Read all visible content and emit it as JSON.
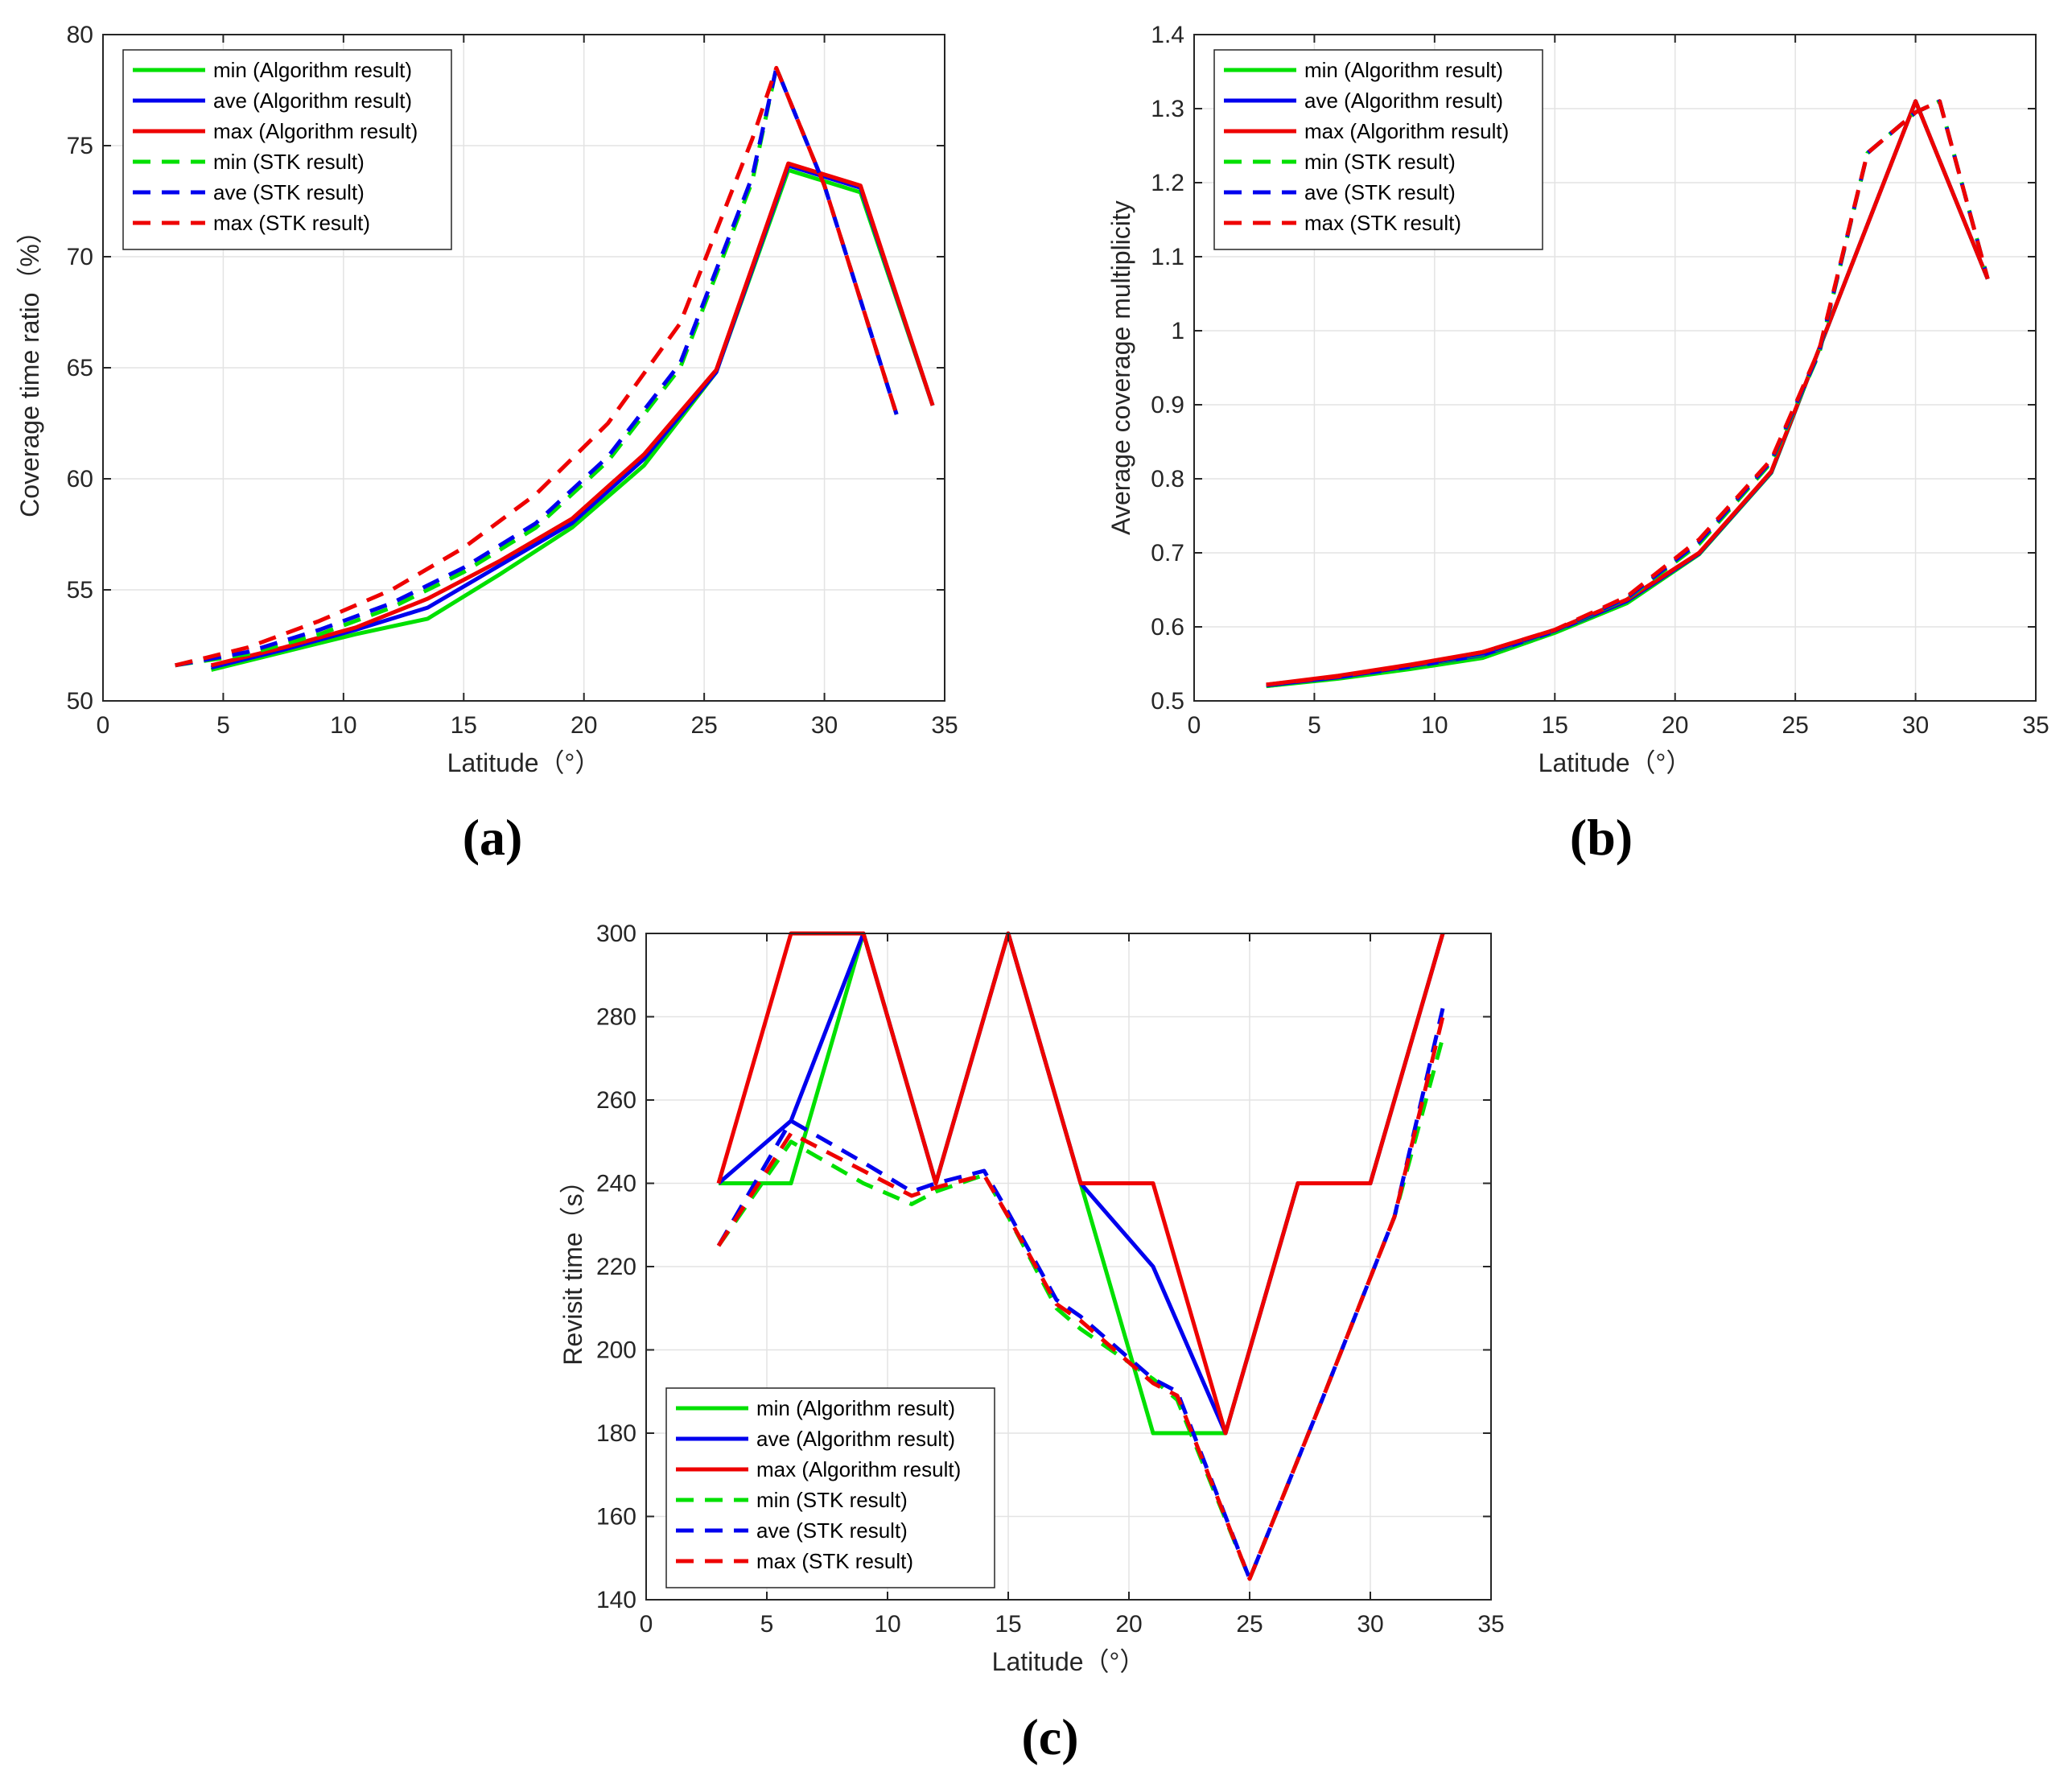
{
  "figure": {
    "panel_labels": [
      "(a)",
      "(b)",
      "(c)"
    ]
  },
  "legend_entries": [
    {
      "label": "min (Algorithm result)",
      "color": "#00e000",
      "style": "solid"
    },
    {
      "label": "ave (Algorithm result)",
      "color": "#0000ee",
      "style": "solid"
    },
    {
      "label": "max (Algorithm result)",
      "color": "#ee0000",
      "style": "solid"
    },
    {
      "label": "min (STK result)",
      "color": "#00e000",
      "style": "dashed"
    },
    {
      "label": "ave (STK result)",
      "color": "#0000ee",
      "style": "dashed"
    },
    {
      "label": "max (STK result)",
      "color": "#ee0000",
      "style": "dashed"
    }
  ],
  "chart_data": [
    {
      "id": "a",
      "type": "line",
      "panel_label": "(a)",
      "title": "",
      "xlabel": "Latitude（°）",
      "ylabel": "Coverage time ratio（%）",
      "xlim": [
        0,
        35
      ],
      "ylim": [
        50,
        80
      ],
      "xticks": [
        0,
        5,
        10,
        15,
        20,
        25,
        30,
        35
      ],
      "yticks": [
        50,
        55,
        60,
        65,
        70,
        75,
        80
      ],
      "grid": true,
      "legend_position": "top-left",
      "series": [
        {
          "name": "min (Algorithm result)",
          "color": "#00e000",
          "dashed": false,
          "x": [
            4.5,
            7.5,
            10.5,
            13.5,
            16.5,
            19.5,
            22.5,
            25.5,
            28.5,
            31.5,
            34.5
          ],
          "y": [
            51.4,
            52.2,
            53.0,
            53.7,
            55.7,
            57.8,
            60.6,
            64.8,
            73.9,
            72.9,
            63.3
          ]
        },
        {
          "name": "ave (Algorithm result)",
          "color": "#0000ee",
          "dashed": false,
          "x": [
            4.5,
            7.5,
            10.5,
            13.5,
            16.5,
            19.5,
            22.5,
            25.5,
            28.5,
            31.5,
            34.5
          ],
          "y": [
            51.5,
            52.3,
            53.2,
            54.2,
            56.1,
            58.0,
            60.9,
            64.8,
            74.1,
            73.1,
            63.3
          ]
        },
        {
          "name": "max (Algorithm result)",
          "color": "#ee0000",
          "dashed": false,
          "x": [
            4.5,
            7.5,
            10.5,
            13.5,
            16.5,
            19.5,
            22.5,
            25.5,
            28.5,
            31.5,
            34.5
          ],
          "y": [
            51.6,
            52.4,
            53.3,
            54.6,
            56.3,
            58.2,
            61.1,
            64.9,
            74.2,
            73.2,
            63.3
          ]
        },
        {
          "name": "min (STK result)",
          "color": "#00e000",
          "dashed": true,
          "x": [
            3,
            6,
            9,
            12,
            15,
            18,
            21,
            24,
            27,
            28,
            30,
            33
          ],
          "y": [
            51.6,
            52.1,
            53.0,
            54.2,
            55.8,
            57.8,
            60.8,
            65.0,
            73.4,
            78.5,
            73.2,
            62.9
          ]
        },
        {
          "name": "ave (STK result)",
          "color": "#0000ee",
          "dashed": true,
          "x": [
            3,
            6,
            9,
            12,
            15,
            18,
            21,
            24,
            27,
            28,
            30,
            33
          ],
          "y": [
            51.6,
            52.2,
            53.2,
            54.4,
            56.0,
            58.0,
            61.0,
            65.2,
            73.6,
            78.5,
            73.2,
            62.9
          ]
        },
        {
          "name": "max (STK result)",
          "color": "#ee0000",
          "dashed": true,
          "x": [
            3,
            6,
            9,
            12,
            15,
            18,
            21,
            24,
            27,
            28,
            30,
            33
          ],
          "y": [
            51.6,
            52.4,
            53.6,
            55.0,
            56.9,
            59.3,
            62.5,
            67.0,
            75.3,
            78.5,
            73.2,
            62.9
          ]
        }
      ]
    },
    {
      "id": "b",
      "type": "line",
      "panel_label": "(b)",
      "title": "",
      "xlabel": "Latitude（°）",
      "ylabel": "Average coverage multiplicity",
      "xlim": [
        0,
        35
      ],
      "ylim": [
        0.5,
        1.4
      ],
      "xticks": [
        0,
        5,
        10,
        15,
        20,
        25,
        30,
        35
      ],
      "yticks": [
        0.5,
        0.6,
        0.7,
        0.8,
        0.9,
        1,
        1.1,
        1.2,
        1.3,
        1.4
      ],
      "grid": true,
      "legend_position": "top-left",
      "series": [
        {
          "name": "min (Algorithm result)",
          "color": "#00e000",
          "dashed": false,
          "x": [
            3,
            6,
            9,
            12,
            15,
            18,
            21,
            24,
            27,
            30,
            33
          ],
          "y": [
            0.52,
            0.53,
            0.543,
            0.558,
            0.592,
            0.632,
            0.698,
            0.808,
            1.06,
            1.31,
            1.07
          ]
        },
        {
          "name": "ave (Algorithm result)",
          "color": "#0000ee",
          "dashed": false,
          "x": [
            3,
            6,
            9,
            12,
            15,
            18,
            21,
            24,
            27,
            30,
            33
          ],
          "y": [
            0.521,
            0.532,
            0.546,
            0.562,
            0.594,
            0.635,
            0.699,
            0.809,
            1.06,
            1.31,
            1.07
          ]
        },
        {
          "name": "max (Algorithm result)",
          "color": "#ee0000",
          "dashed": false,
          "x": [
            3,
            6,
            9,
            12,
            15,
            18,
            21,
            24,
            27,
            30,
            33
          ],
          "y": [
            0.522,
            0.534,
            0.549,
            0.566,
            0.596,
            0.637,
            0.7,
            0.81,
            1.06,
            1.31,
            1.07
          ]
        },
        {
          "name": "min (STK result)",
          "color": "#00e000",
          "dashed": true,
          "x": [
            3,
            6,
            9,
            12,
            15,
            18,
            21,
            24,
            26,
            28,
            30,
            31,
            33
          ],
          "y": [
            0.52,
            0.531,
            0.546,
            0.563,
            0.594,
            0.638,
            0.712,
            0.822,
            0.97,
            1.24,
            1.295,
            1.31,
            1.07
          ]
        },
        {
          "name": "ave (STK result)",
          "color": "#0000ee",
          "dashed": true,
          "x": [
            3,
            6,
            9,
            12,
            15,
            18,
            21,
            24,
            26,
            28,
            30,
            31,
            33
          ],
          "y": [
            0.521,
            0.532,
            0.547,
            0.564,
            0.595,
            0.639,
            0.715,
            0.824,
            0.972,
            1.24,
            1.295,
            1.31,
            1.07
          ]
        },
        {
          "name": "max (STK result)",
          "color": "#ee0000",
          "dashed": true,
          "x": [
            3,
            6,
            9,
            12,
            15,
            18,
            21,
            24,
            26,
            28,
            30,
            31,
            33
          ],
          "y": [
            0.522,
            0.533,
            0.548,
            0.566,
            0.596,
            0.641,
            0.718,
            0.826,
            0.975,
            1.24,
            1.295,
            1.31,
            1.07
          ]
        }
      ]
    },
    {
      "id": "c",
      "type": "line",
      "panel_label": "(c)",
      "title": "",
      "xlabel": "Latitude（°）",
      "ylabel": "Revisit time（s）",
      "xlim": [
        0,
        35
      ],
      "ylim": [
        140,
        300
      ],
      "xticks": [
        0,
        5,
        10,
        15,
        20,
        25,
        30,
        35
      ],
      "yticks": [
        140,
        160,
        180,
        200,
        220,
        240,
        260,
        280,
        300
      ],
      "grid": true,
      "legend_position": "bottom-left",
      "series": [
        {
          "name": "min (Algorithm result)",
          "color": "#00e000",
          "dashed": false,
          "x": [
            3,
            6,
            9,
            12,
            15,
            18,
            21,
            24,
            27,
            30,
            33
          ],
          "y": [
            240,
            240,
            300,
            240,
            300,
            240,
            180,
            180,
            240,
            240,
            300
          ]
        },
        {
          "name": "ave (Algorithm result)",
          "color": "#0000ee",
          "dashed": false,
          "x": [
            3,
            6,
            9,
            12,
            15,
            18,
            21,
            24,
            27,
            30,
            33
          ],
          "y": [
            240,
            255,
            300,
            240,
            300,
            240,
            220,
            180,
            240,
            240,
            300
          ]
        },
        {
          "name": "max (Algorithm result)",
          "color": "#ee0000",
          "dashed": false,
          "x": [
            3,
            6,
            9,
            12,
            15,
            18,
            21,
            24,
            27,
            30,
            33
          ],
          "y": [
            240,
            300,
            300,
            240,
            300,
            240,
            240,
            180,
            240,
            240,
            300
          ]
        },
        {
          "name": "min (STK result)",
          "color": "#00e000",
          "dashed": true,
          "x": [
            3,
            6,
            9,
            11,
            12,
            14,
            15,
            17,
            18,
            20,
            21,
            22,
            25,
            28,
            31,
            33
          ],
          "y": [
            225,
            250,
            240,
            235,
            238,
            242,
            232,
            210,
            205,
            197,
            193,
            188,
            145,
            188,
            232,
            275
          ]
        },
        {
          "name": "ave (STK result)",
          "color": "#0000ee",
          "dashed": true,
          "x": [
            3,
            6,
            9,
            11,
            12,
            14,
            15,
            17,
            18,
            20,
            21,
            22,
            25,
            28,
            31,
            33
          ],
          "y": [
            225,
            255,
            245,
            238,
            240,
            243,
            233,
            212,
            208,
            198,
            193,
            190,
            145,
            188,
            232,
            282
          ]
        },
        {
          "name": "max (STK result)",
          "color": "#ee0000",
          "dashed": true,
          "x": [
            3,
            6,
            9,
            11,
            12,
            14,
            15,
            17,
            18,
            20,
            21,
            22,
            25,
            28,
            31,
            33
          ],
          "y": [
            225,
            252,
            243,
            237,
            239,
            242,
            232,
            211,
            207,
            197,
            192,
            189,
            145,
            188,
            232,
            280
          ]
        }
      ]
    }
  ]
}
